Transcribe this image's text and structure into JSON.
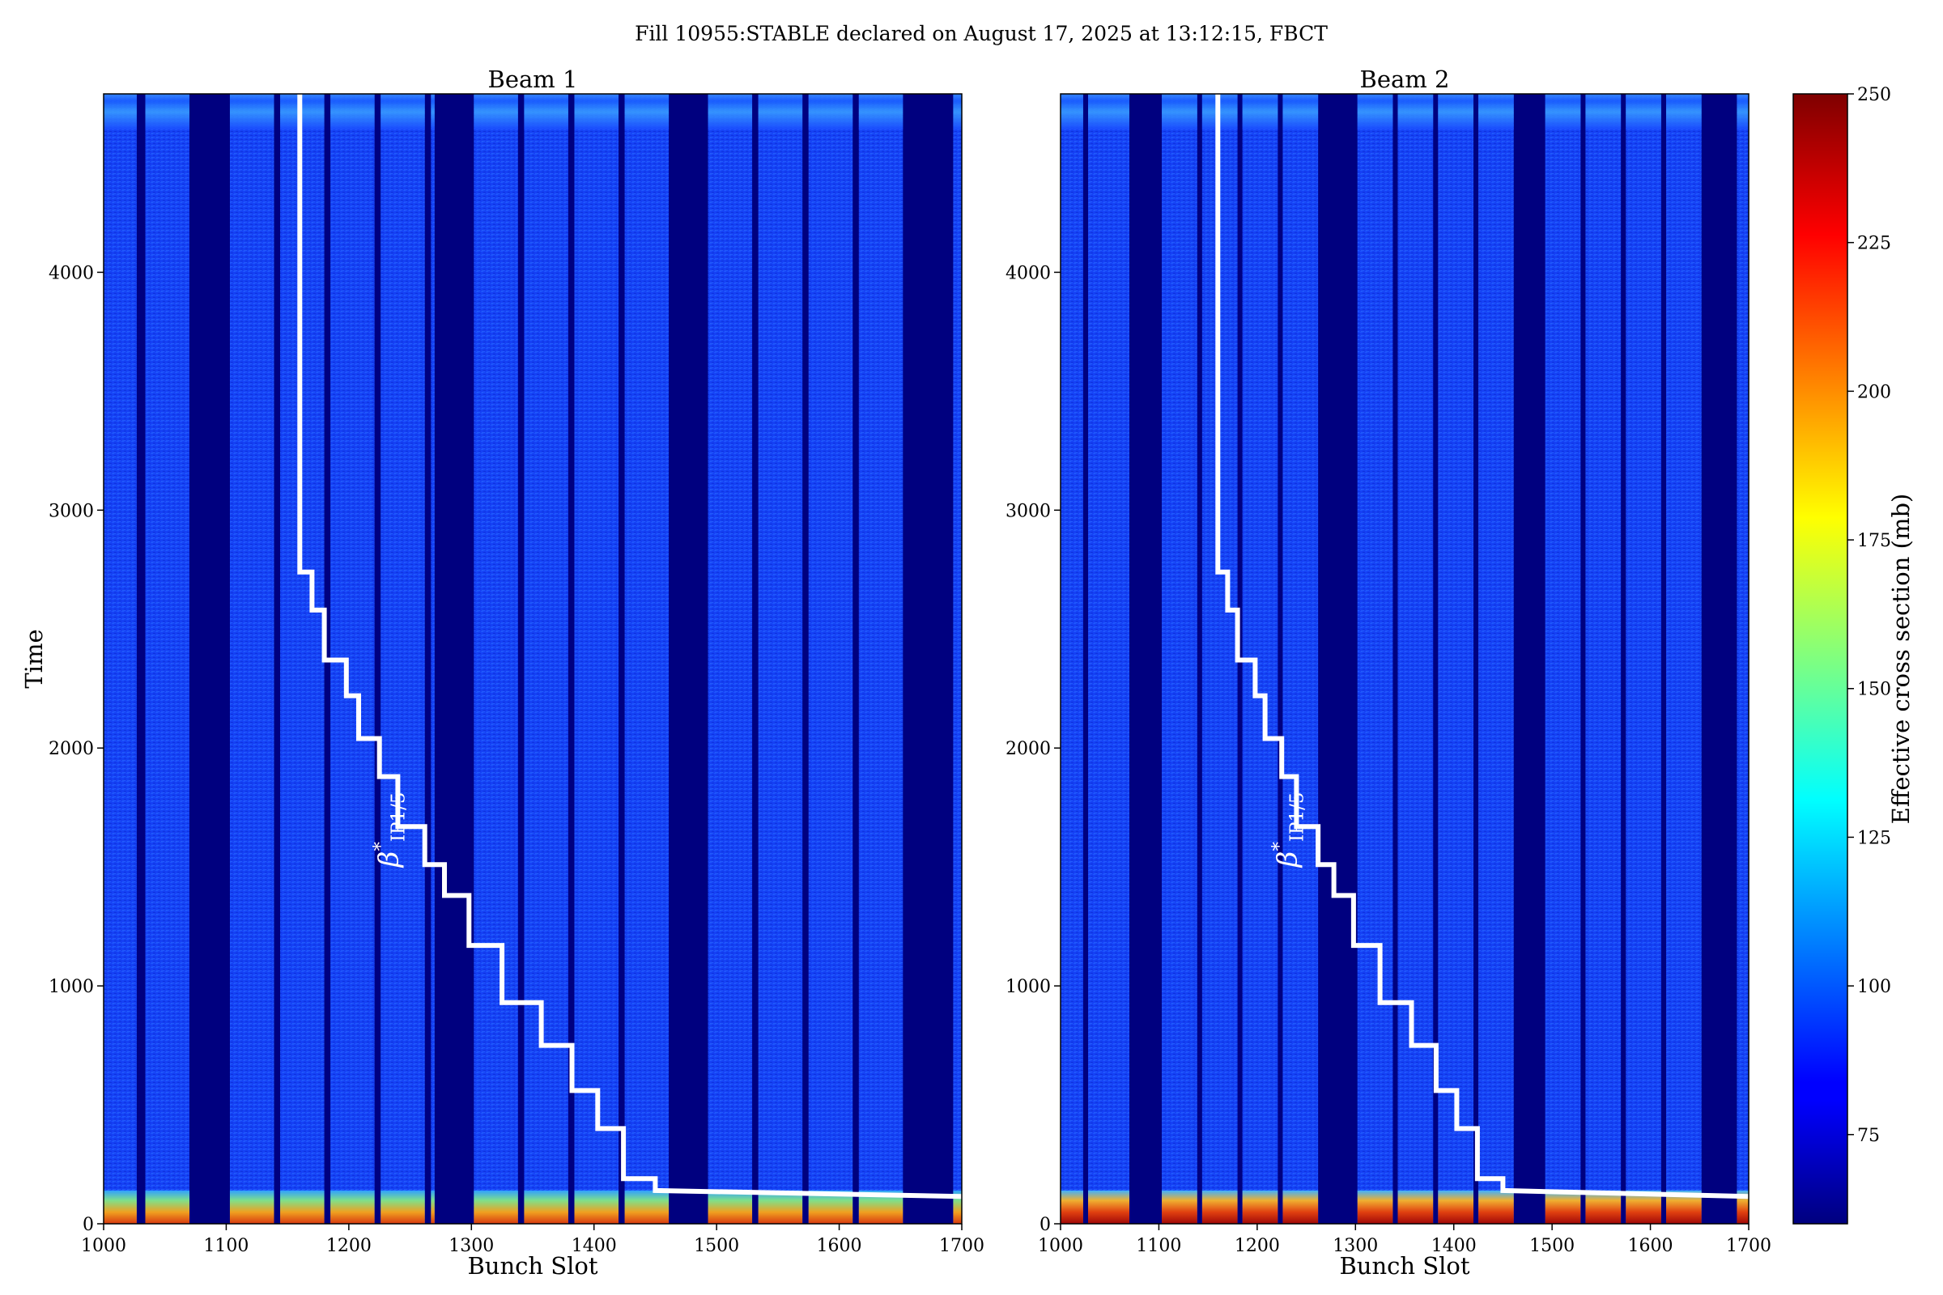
{
  "figure": {
    "title": "Fill 10955:STABLE declared on August 17, 2025 at 13:12:15, FBCT"
  },
  "chart_data": {
    "type": "heatmap",
    "title": "Fill 10955:STABLE declared on August 17, 2025 at 13:12:15, FBCT",
    "xlim": [
      1000,
      1700
    ],
    "ylim": [
      0,
      4750
    ],
    "xticks": [
      "1000",
      "1100",
      "1200",
      "1300",
      "1400",
      "1500",
      "1600",
      "1700"
    ],
    "yticks": [
      "0",
      "1000",
      "2000",
      "3000",
      "4000"
    ],
    "ylabel": "Time",
    "colorbar": {
      "label": "Effective cross section (mb)",
      "range": [
        60,
        250
      ],
      "ticks": [
        "75",
        "100",
        "125",
        "150",
        "175",
        "200",
        "225",
        "250"
      ],
      "colormap": "jet"
    },
    "beta_label": {
      "main": "β",
      "sup": "*",
      "sub": "IP1/5",
      "position": [
        1240,
        1500
      ]
    },
    "beta_step_line": [
      [
        1160,
        4750
      ],
      [
        1160,
        2740
      ],
      [
        1170,
        2740
      ],
      [
        1170,
        2580
      ],
      [
        1180,
        2580
      ],
      [
        1180,
        2370
      ],
      [
        1198,
        2370
      ],
      [
        1198,
        2220
      ],
      [
        1208,
        2220
      ],
      [
        1208,
        2040
      ],
      [
        1225,
        2040
      ],
      [
        1225,
        1880
      ],
      [
        1240,
        1880
      ],
      [
        1240,
        1670
      ],
      [
        1262,
        1670
      ],
      [
        1262,
        1510
      ],
      [
        1278,
        1510
      ],
      [
        1278,
        1380
      ],
      [
        1298,
        1380
      ],
      [
        1298,
        1170
      ],
      [
        1325,
        1170
      ],
      [
        1325,
        930
      ],
      [
        1357,
        930
      ],
      [
        1357,
        750
      ],
      [
        1382,
        750
      ],
      [
        1382,
        560
      ],
      [
        1403,
        560
      ],
      [
        1403,
        400
      ],
      [
        1424,
        400
      ],
      [
        1424,
        190
      ],
      [
        1450,
        190
      ],
      [
        1450,
        140
      ],
      [
        1700,
        115
      ]
    ],
    "panels": [
      {
        "title": "Beam 1",
        "xlabel": "Bunch Slot",
        "trains": [
          [
            1000,
            1027
          ],
          [
            1034,
            1070
          ],
          [
            1103,
            1139
          ],
          [
            1144,
            1180
          ],
          [
            1185,
            1221
          ],
          [
            1226,
            1262
          ],
          [
            1267,
            1270
          ],
          [
            1302,
            1338
          ],
          [
            1343,
            1379
          ],
          [
            1384,
            1420
          ],
          [
            1425,
            1461
          ],
          [
            1493,
            1529
          ],
          [
            1534,
            1570
          ],
          [
            1575,
            1611
          ],
          [
            1616,
            1652
          ],
          [
            1693,
            1700
          ]
        ],
        "bottom_level": 185,
        "top_level": 95,
        "body_level": 84
      },
      {
        "title": "Beam 2",
        "xlabel": "Bunch Slot",
        "trains": [
          [
            1000,
            1023
          ],
          [
            1028,
            1070
          ],
          [
            1103,
            1139
          ],
          [
            1144,
            1180
          ],
          [
            1185,
            1221
          ],
          [
            1226,
            1262
          ],
          [
            1302,
            1338
          ],
          [
            1343,
            1379
          ],
          [
            1384,
            1420
          ],
          [
            1425,
            1461
          ],
          [
            1493,
            1529
          ],
          [
            1534,
            1570
          ],
          [
            1575,
            1611
          ],
          [
            1616,
            1652
          ],
          [
            1688,
            1700
          ]
        ],
        "bottom_level": 215,
        "top_level": 115,
        "body_level": 85
      }
    ]
  }
}
